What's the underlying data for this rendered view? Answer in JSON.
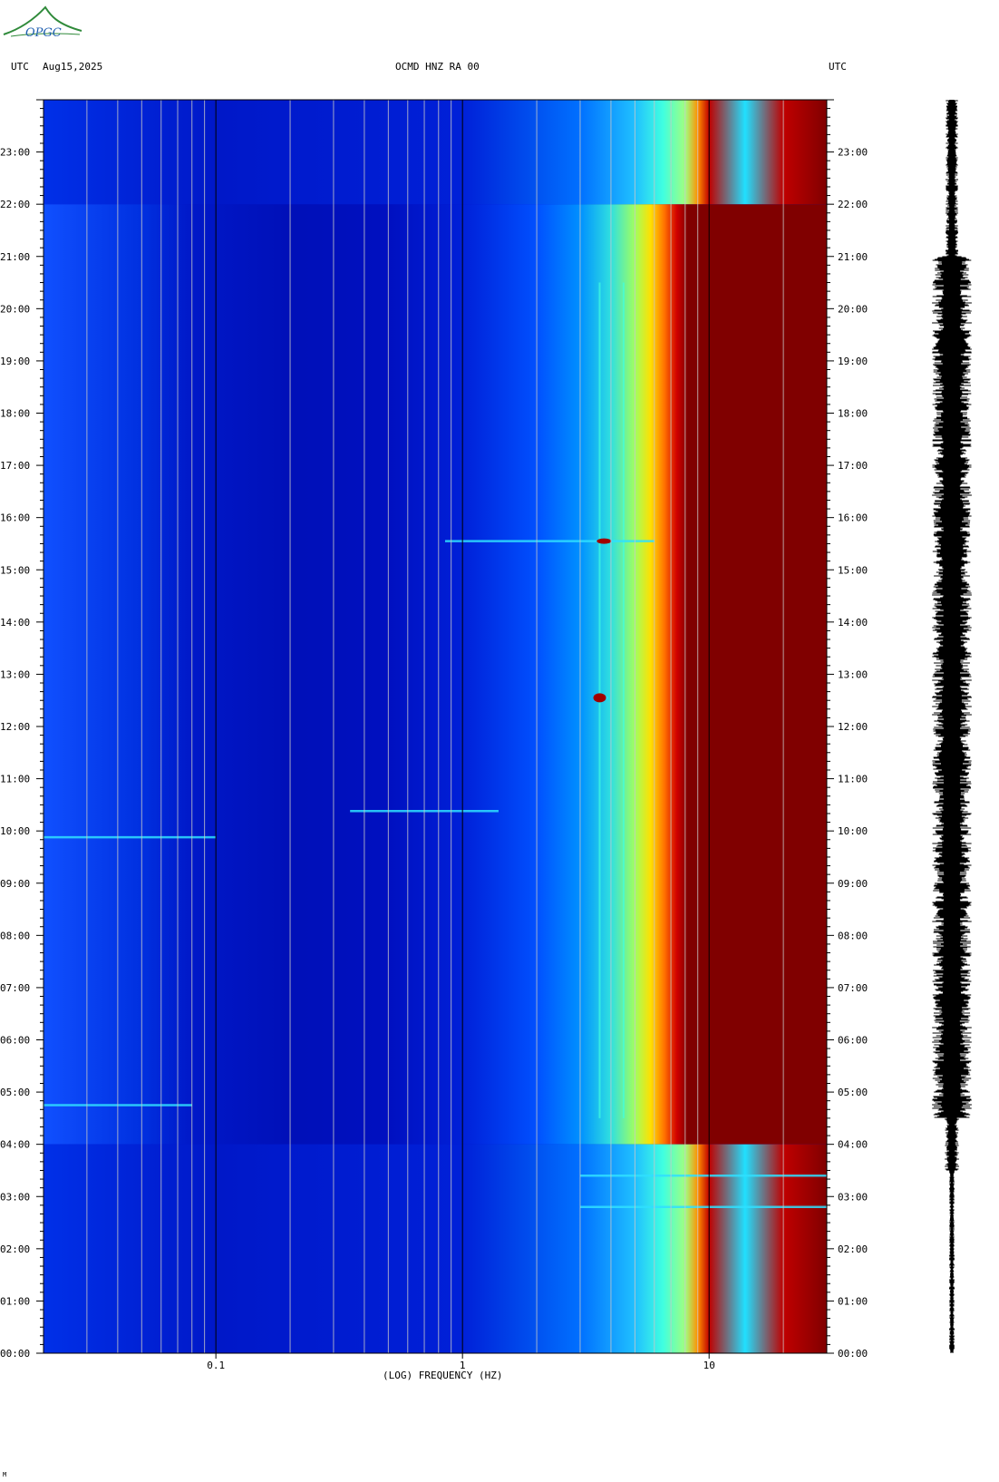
{
  "header": {
    "left_utc": "UTC",
    "date": "Aug15,2025",
    "station": "OCMD HNZ RA 00",
    "right_utc": "UTC"
  },
  "logo": {
    "text": "OPGC",
    "color": "#2f8a3a",
    "text_color": "#1f5fb0"
  },
  "footer": {
    "mark": "M"
  },
  "chart_data": {
    "type": "heatmap",
    "title": "OCMD HNZ RA 00",
    "xlabel": "(LOG) FREQUENCY (HZ)",
    "ylabel": "UTC",
    "x_scale": "log",
    "xlim": [
      0.02,
      30
    ],
    "ylim": [
      0,
      24
    ],
    "x_ticks": [
      {
        "value": 0.1,
        "label": "0.1"
      },
      {
        "value": 1,
        "label": "1"
      },
      {
        "value": 10,
        "label": "10"
      }
    ],
    "y_ticks": [
      {
        "value": 0,
        "label": "00:00"
      },
      {
        "value": 1,
        "label": "01:00"
      },
      {
        "value": 2,
        "label": "02:00"
      },
      {
        "value": 3,
        "label": "03:00"
      },
      {
        "value": 4,
        "label": "04:00"
      },
      {
        "value": 5,
        "label": "05:00"
      },
      {
        "value": 6,
        "label": "06:00"
      },
      {
        "value": 7,
        "label": "07:00"
      },
      {
        "value": 8,
        "label": "08:00"
      },
      {
        "value": 9,
        "label": "09:00"
      },
      {
        "value": 10,
        "label": "10:00"
      },
      {
        "value": 11,
        "label": "11:00"
      },
      {
        "value": 12,
        "label": "12:00"
      },
      {
        "value": 13,
        "label": "13:00"
      },
      {
        "value": 14,
        "label": "14:00"
      },
      {
        "value": 15,
        "label": "15:00"
      },
      {
        "value": 16,
        "label": "16:00"
      },
      {
        "value": 17,
        "label": "17:00"
      },
      {
        "value": 18,
        "label": "18:00"
      },
      {
        "value": 19,
        "label": "19:00"
      },
      {
        "value": 20,
        "label": "20:00"
      },
      {
        "value": 21,
        "label": "21:00"
      },
      {
        "value": 22,
        "label": "22:00"
      },
      {
        "value": 23,
        "label": "23:00"
      }
    ],
    "gridlines_hz": [
      0.03,
      0.04,
      0.05,
      0.06,
      0.07,
      0.08,
      0.09,
      0.1,
      0.2,
      0.3,
      0.4,
      0.5,
      0.6,
      0.7,
      0.8,
      0.9,
      1,
      2,
      3,
      4,
      5,
      6,
      7,
      8,
      9,
      10,
      20,
      30
    ],
    "colormap": [
      "#00008f",
      "#0000d8",
      "#0040ff",
      "#00a0ff",
      "#20ffe0",
      "#a0ff60",
      "#ffff00",
      "#ff9000",
      "#e00000",
      "#800000"
    ],
    "background_color": "#0010c8",
    "saturated_color": "#800000",
    "spectral_lines_hz": [
      3.6,
      4.5
    ],
    "transient_events": [
      {
        "utc_hour": 15.55,
        "freq_hz": [
          0.85,
          6
        ]
      },
      {
        "utc_hour": 12.55,
        "freq_hz": [
          3.4,
          3.9
        ]
      },
      {
        "utc_hour": 10.38,
        "freq_hz": [
          0.35,
          1.4
        ]
      },
      {
        "utc_hour": 9.88,
        "freq_hz": [
          0.02,
          0.1
        ]
      },
      {
        "utc_hour": 4.75,
        "freq_hz": [
          0.02,
          0.08
        ]
      },
      {
        "utc_hour": 2.8,
        "freq_hz": [
          3,
          30
        ]
      },
      {
        "utc_hour": 3.4,
        "freq_hz": [
          3,
          30
        ]
      }
    ],
    "seismogram_color": "#000000"
  }
}
